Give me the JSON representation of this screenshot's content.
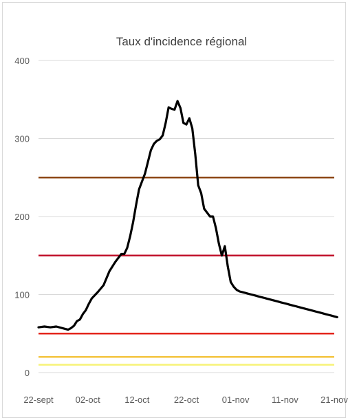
{
  "chart_data": {
    "type": "line",
    "title": "Taux d'incidence régional",
    "xlabel": "",
    "ylabel": "",
    "ylim": [
      0,
      400
    ],
    "yticks": [
      "0",
      "100",
      "200",
      "300",
      "400"
    ],
    "xtick_labels": [
      "22-sept",
      "02-oct",
      "12-oct",
      "22-oct",
      "01-nov",
      "11-nov",
      "21-nov"
    ],
    "grid": true,
    "legend": "none",
    "x_days": [
      0,
      2,
      4,
      6,
      8,
      9,
      10,
      11,
      12,
      13,
      14,
      15,
      16,
      17,
      18,
      19,
      20,
      22,
      24,
      26,
      28,
      29,
      30,
      31,
      32,
      33,
      34,
      36,
      37,
      38,
      39,
      40,
      41,
      42,
      43,
      44,
      45,
      46,
      47,
      48,
      49,
      50,
      51,
      52,
      53,
      54,
      55,
      56,
      57,
      58,
      59,
      60,
      61,
      62,
      63,
      64,
      65,
      66,
      67,
      68,
      69,
      70,
      71,
      72,
      73,
      74,
      75,
      76,
      77,
      78,
      79,
      80,
      81,
      82,
      83,
      84,
      85,
      86,
      87,
      88,
      89,
      90,
      91,
      92,
      93,
      94,
      95,
      96,
      97,
      98,
      99,
      100,
      101
    ],
    "series": [
      {
        "values": [
          58,
          59,
          58,
          59,
          57,
          56,
          55,
          57,
          60,
          66,
          68,
          75,
          80,
          88,
          95,
          99,
          103,
          112,
          130,
          142,
          152,
          152,
          160,
          175,
          193,
          215,
          235,
          255,
          270,
          285,
          293,
          297,
          299,
          304,
          320,
          340,
          338,
          337,
          348,
          339,
          320,
          318,
          326,
          313,
          280,
          240,
          230,
          210,
          205,
          200,
          200,
          185,
          165,
          150,
          162,
          136,
          116,
          110,
          106,
          104,
          103,
          102,
          101,
          100,
          99,
          98,
          97,
          96,
          95,
          94,
          93,
          92,
          91,
          90,
          89,
          88,
          87,
          86,
          85,
          84,
          83,
          82,
          81,
          80,
          79,
          78,
          77,
          76,
          75,
          74,
          73,
          72,
          71
        ]
      }
    ],
    "threshold_lines": [
      {
        "value": 250,
        "color": "#8B4513"
      },
      {
        "value": 150,
        "color": "#C0102A"
      },
      {
        "value": 50,
        "color": "#E32219"
      },
      {
        "value": 20,
        "color": "#F4C542"
      },
      {
        "value": 10,
        "color": "#F7F276"
      }
    ],
    "line_color": "#000000",
    "grid_color": "#d9d9d9"
  }
}
